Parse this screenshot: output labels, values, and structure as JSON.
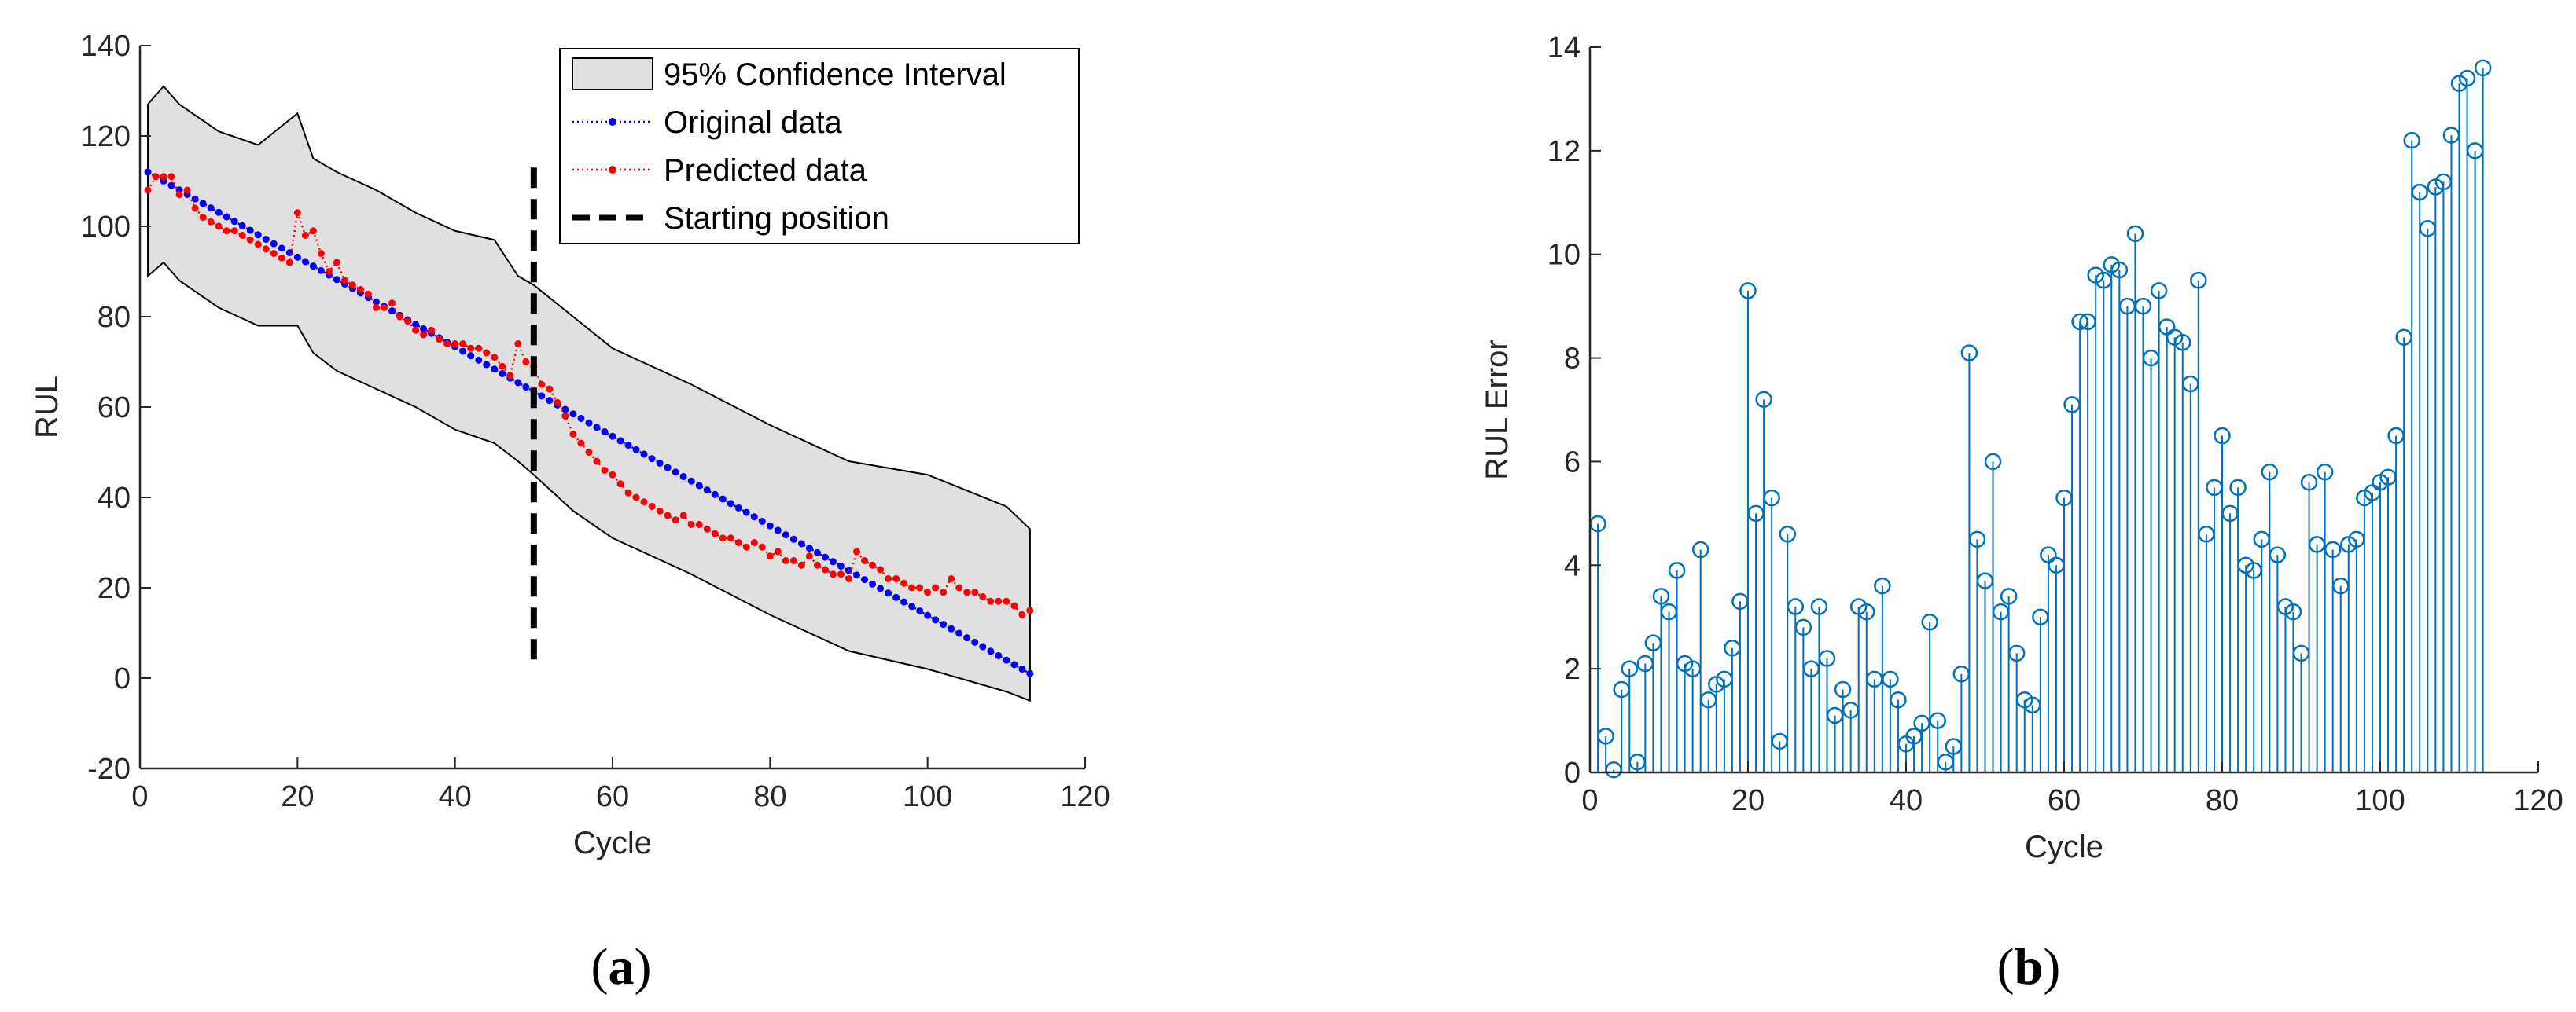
{
  "colors": {
    "original": "#0000ff",
    "predicted": "#ff0000",
    "ci_fill": "#e0e0e0",
    "stem": "#0072bd",
    "axis": "#262626"
  },
  "panel_labels": {
    "a": "a",
    "b": "b",
    "open": "(",
    "close": ")"
  },
  "chart_data": [
    {
      "id": "a",
      "type": "line",
      "title": "",
      "xlabel": "Cycle",
      "ylabel": "RUL",
      "xlim": [
        0,
        120
      ],
      "ylim": [
        -20,
        140
      ],
      "xticks": [
        0,
        20,
        40,
        60,
        80,
        100,
        120
      ],
      "yticks": [
        -20,
        0,
        20,
        40,
        60,
        80,
        100,
        120,
        140
      ],
      "legend_position": "top-right",
      "legend": [
        "95% Confidence Interval",
        "Original data",
        "Predicted data",
        "Starting position"
      ],
      "starting_position": {
        "x": 50,
        "y_range": [
          3,
          113
        ]
      },
      "series": [
        {
          "name": "Original data",
          "style": "dotted-dot",
          "color": "blue",
          "x_start": 1,
          "x_end": 113,
          "y_start": 112,
          "y_end": 1
        },
        {
          "name": "Predicted data",
          "style": "dotted-dot",
          "color": "red",
          "x": [
            1,
            2,
            3,
            4,
            5,
            6,
            7,
            8,
            9,
            10,
            11,
            12,
            13,
            14,
            15,
            16,
            17,
            18,
            19,
            20,
            21,
            22,
            23,
            24,
            25,
            26,
            27,
            28,
            29,
            30,
            31,
            32,
            33,
            34,
            35,
            36,
            37,
            38,
            39,
            40,
            41,
            42,
            43,
            44,
            45,
            46,
            47,
            48,
            49,
            50,
            51,
            52,
            53,
            54,
            55,
            56,
            57,
            58,
            59,
            60,
            61,
            62,
            63,
            64,
            65,
            66,
            67,
            68,
            69,
            70,
            71,
            72,
            73,
            74,
            75,
            76,
            77,
            78,
            79,
            80,
            81,
            82,
            83,
            84,
            85,
            86,
            87,
            88,
            89,
            90,
            91,
            92,
            93,
            94,
            95,
            96,
            97,
            98,
            99,
            100,
            101,
            102,
            103,
            104,
            105,
            106,
            107,
            108,
            109,
            110,
            111,
            112,
            113
          ],
          "y": [
            108,
            111,
            111,
            111,
            107,
            108,
            104,
            102,
            101,
            100,
            99,
            99,
            98,
            97,
            96,
            95,
            94,
            93,
            92,
            103,
            98,
            99,
            94,
            90,
            92,
            88,
            87,
            86,
            85,
            82,
            82,
            83,
            80,
            79,
            77,
            76,
            77,
            75,
            74,
            74,
            74,
            73,
            73,
            72,
            71,
            69,
            67,
            74,
            70,
            69,
            65,
            64,
            61,
            58,
            54,
            52,
            50,
            48,
            46,
            45,
            43,
            41,
            40,
            39,
            38,
            37,
            36,
            35,
            36,
            34,
            34,
            33,
            32,
            31,
            31,
            30,
            29,
            30,
            29,
            27,
            28,
            26,
            26,
            25,
            27,
            25,
            24,
            23,
            23,
            22,
            28,
            26,
            25,
            24,
            22,
            22,
            21,
            20,
            20,
            19,
            20,
            19,
            22,
            20,
            19,
            19,
            18,
            17,
            17,
            17,
            16,
            14,
            15
          ]
        },
        {
          "name": "95% Confidence Interval",
          "style": "band",
          "color": "gray",
          "x": [
            1,
            3,
            5,
            10,
            15,
            20,
            22,
            25,
            30,
            35,
            40,
            45,
            48,
            50,
            55,
            60,
            70,
            80,
            90,
            100,
            110,
            113
          ],
          "upper": [
            127,
            131,
            127,
            121,
            118,
            125,
            115,
            112,
            108,
            103,
            99,
            97,
            89,
            87,
            80,
            73,
            65,
            56,
            48,
            45,
            38,
            33
          ],
          "lower": [
            89,
            92,
            88,
            82,
            78,
            78,
            72,
            68,
            64,
            60,
            55,
            52,
            48,
            45,
            37,
            31,
            23,
            14,
            6,
            2,
            -3,
            -5
          ]
        }
      ]
    },
    {
      "id": "b",
      "type": "stem",
      "title": "",
      "xlabel": "Cycle",
      "ylabel": "RUL Error",
      "xlim": [
        0,
        120
      ],
      "ylim": [
        0,
        14
      ],
      "xticks": [
        0,
        20,
        40,
        60,
        80,
        100,
        120
      ],
      "yticks": [
        0,
        2,
        4,
        6,
        8,
        10,
        12,
        14
      ],
      "x_start": 1,
      "values": [
        4.8,
        0.7,
        0.05,
        1.6,
        2.0,
        0.2,
        2.1,
        2.5,
        3.4,
        3.1,
        3.9,
        2.1,
        2.0,
        4.3,
        1.4,
        1.7,
        1.8,
        2.4,
        3.3,
        9.3,
        5.0,
        7.2,
        5.3,
        0.6,
        4.6,
        3.2,
        2.8,
        2.0,
        3.2,
        2.2,
        1.1,
        1.6,
        1.2,
        3.2,
        3.1,
        1.8,
        3.6,
        1.8,
        1.4,
        0.55,
        0.7,
        0.95,
        2.9,
        1.0,
        0.2,
        0.5,
        1.9,
        8.1,
        4.5,
        3.7,
        6.0,
        3.1,
        3.4,
        2.3,
        1.4,
        1.3,
        3.0,
        4.2,
        4.0,
        5.3,
        7.1,
        8.7,
        8.7,
        9.6,
        9.5,
        9.8,
        9.7,
        9.0,
        10.4,
        9.0,
        8.0,
        9.3,
        8.6,
        8.4,
        8.3,
        7.5,
        9.5,
        4.6,
        5.5,
        6.5,
        5.0,
        5.5,
        4.0,
        3.9,
        4.5,
        5.8,
        4.2,
        3.2,
        3.1,
        2.3,
        5.6,
        4.4,
        5.8,
        4.3,
        3.6,
        4.4,
        4.5,
        5.3,
        5.4,
        5.6,
        5.7,
        6.5,
        8.4,
        12.2,
        11.2,
        10.5,
        11.3,
        11.4,
        12.3,
        13.3,
        13.4,
        12.0,
        13.6
      ]
    }
  ]
}
